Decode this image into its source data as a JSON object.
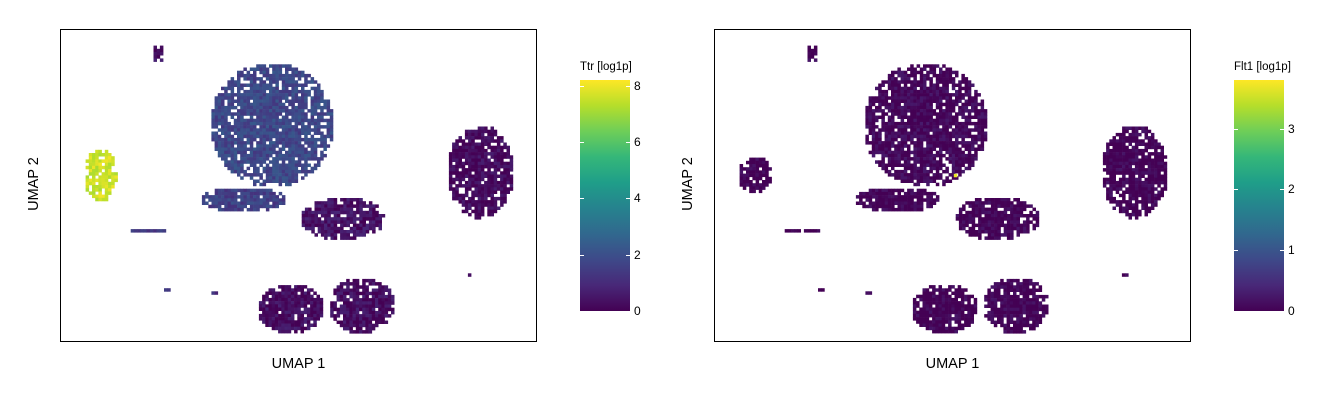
{
  "colors": {
    "viridis": [
      "#440154",
      "#482878",
      "#3e4989",
      "#31688e",
      "#26828e",
      "#1f9e89",
      "#35b779",
      "#6ece58",
      "#b5de2b",
      "#fde725"
    ]
  },
  "chart_data": [
    {
      "type": "scatter",
      "title": "",
      "xlabel": "UMAP 1",
      "ylabel": "UMAP 2",
      "legend_title": "Ttr [log1p]",
      "legend_ticks": [
        "0",
        "2",
        "4",
        "6",
        "8"
      ],
      "legend_range": [
        0,
        8.2
      ],
      "legend_placement": "right",
      "grid": false,
      "clusters": [
        {
          "name": "top-small",
          "cx": 0.2,
          "cy": 0.93,
          "rx": 0.012,
          "ry": 0.03,
          "value": 0.3
        },
        {
          "name": "ttr-cluster",
          "cx": 0.08,
          "cy": 0.54,
          "rx": 0.035,
          "ry": 0.085,
          "value": 7.6
        },
        {
          "name": "center-large",
          "cx": 0.44,
          "cy": 0.7,
          "rx": 0.13,
          "ry": 0.2,
          "value": 1.8
        },
        {
          "name": "center-branch",
          "cx": 0.38,
          "cy": 0.46,
          "rx": 0.09,
          "ry": 0.04,
          "value": 1.6
        },
        {
          "name": "mid-small",
          "cx": 0.59,
          "cy": 0.4,
          "rx": 0.09,
          "ry": 0.07,
          "value": 0.4
        },
        {
          "name": "right-cluster",
          "cx": 0.88,
          "cy": 0.55,
          "rx": 0.07,
          "ry": 0.15,
          "value": 0.2
        },
        {
          "name": "bottom-left",
          "cx": 0.48,
          "cy": 0.11,
          "rx": 0.07,
          "ry": 0.08,
          "value": 0.3
        },
        {
          "name": "bottom-right",
          "cx": 0.63,
          "cy": 0.12,
          "rx": 0.07,
          "ry": 0.09,
          "value": 0.3
        },
        {
          "name": "thin-left",
          "cx": 0.18,
          "cy": 0.36,
          "rx": 0.04,
          "ry": 0.01,
          "value": 1.5
        },
        {
          "name": "tiny-1",
          "cx": 0.22,
          "cy": 0.17,
          "rx": 0.01,
          "ry": 0.01,
          "value": 1.2
        },
        {
          "name": "tiny-2",
          "cx": 0.32,
          "cy": 0.16,
          "rx": 0.01,
          "ry": 0.01,
          "value": 1.0
        },
        {
          "name": "tiny-3",
          "cx": 0.86,
          "cy": 0.22,
          "rx": 0.01,
          "ry": 0.008,
          "value": 0.3
        }
      ]
    },
    {
      "type": "scatter",
      "title": "",
      "xlabel": "UMAP 1",
      "ylabel": "UMAP 2",
      "legend_title": "Flt1 [log1p]",
      "legend_ticks": [
        "0",
        "1",
        "2",
        "3"
      ],
      "legend_range": [
        0,
        3.8
      ],
      "legend_placement": "right",
      "grid": false,
      "clusters": [
        {
          "name": "top-small",
          "cx": 0.2,
          "cy": 0.93,
          "rx": 0.012,
          "ry": 0.03,
          "value": 0.0
        },
        {
          "name": "left-cluster",
          "cx": 0.08,
          "cy": 0.54,
          "rx": 0.035,
          "ry": 0.06,
          "value": 0.0
        },
        {
          "name": "center-large",
          "cx": 0.44,
          "cy": 0.7,
          "rx": 0.13,
          "ry": 0.2,
          "value": 0.05
        },
        {
          "name": "center-branch",
          "cx": 0.38,
          "cy": 0.46,
          "rx": 0.09,
          "ry": 0.04,
          "value": 0.0
        },
        {
          "name": "mid-small",
          "cx": 0.59,
          "cy": 0.4,
          "rx": 0.09,
          "ry": 0.07,
          "value": 0.0
        },
        {
          "name": "right-cluster",
          "cx": 0.88,
          "cy": 0.55,
          "rx": 0.07,
          "ry": 0.15,
          "value": 0.0
        },
        {
          "name": "bottom-left",
          "cx": 0.48,
          "cy": 0.11,
          "rx": 0.07,
          "ry": 0.08,
          "value": 0.0
        },
        {
          "name": "bottom-right",
          "cx": 0.63,
          "cy": 0.12,
          "rx": 0.07,
          "ry": 0.09,
          "value": 0.0
        },
        {
          "name": "thin-left",
          "cx": 0.18,
          "cy": 0.36,
          "rx": 0.04,
          "ry": 0.01,
          "value": 0.0
        },
        {
          "name": "tiny-1",
          "cx": 0.22,
          "cy": 0.17,
          "rx": 0.01,
          "ry": 0.01,
          "value": 0.0
        },
        {
          "name": "tiny-2",
          "cx": 0.32,
          "cy": 0.16,
          "rx": 0.01,
          "ry": 0.01,
          "value": 0.0
        },
        {
          "name": "tiny-3",
          "cx": 0.86,
          "cy": 0.22,
          "rx": 0.01,
          "ry": 0.008,
          "value": 0.0
        },
        {
          "name": "flt1-hotspot",
          "cx": 0.5,
          "cy": 0.54,
          "rx": 0.004,
          "ry": 0.008,
          "value": 3.7
        }
      ]
    }
  ]
}
